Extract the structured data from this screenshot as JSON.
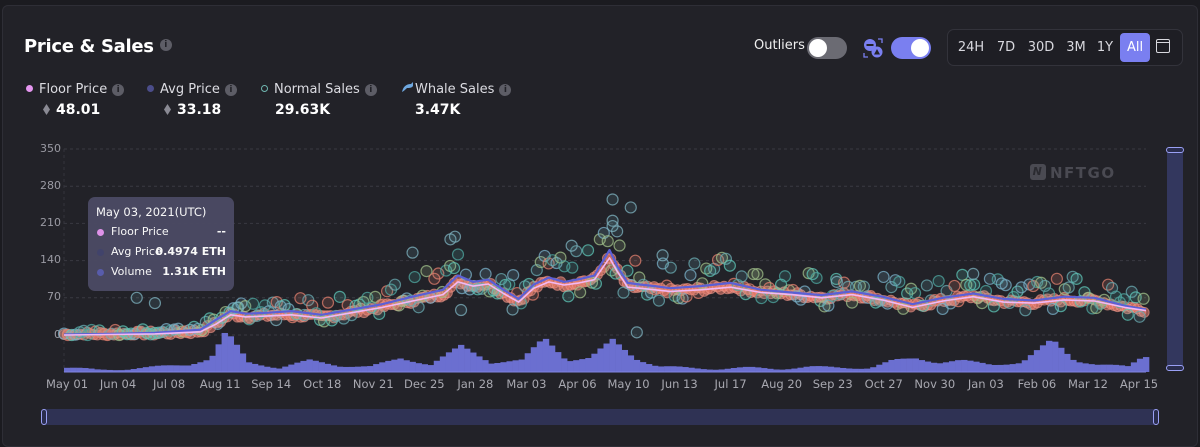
{
  "header": {
    "title": "Price & Sales",
    "outliers_label": "Outliers",
    "outliers_on": false,
    "whale_toggle_on": true,
    "ranges": [
      "24H",
      "7D",
      "30D",
      "3M",
      "1Y",
      "All"
    ],
    "active_range": "All"
  },
  "legend": [
    {
      "label": "Floor Price",
      "value": "48.01",
      "eth": true,
      "color": "#e596f0",
      "marker": "dot"
    },
    {
      "label": "Avg Price",
      "value": "33.18",
      "eth": true,
      "color": "#4b4d8a",
      "marker": "dot"
    },
    {
      "label": "Normal Sales",
      "value": "29.63K",
      "eth": false,
      "color": "#6fb6b0",
      "marker": "ring"
    },
    {
      "label": "Whale Sales",
      "value": "3.47K",
      "eth": false,
      "color": "#6fa8e0",
      "marker": "whale"
    }
  ],
  "tooltip": {
    "date": "May 03, 2021(UTC)",
    "rows": [
      {
        "label": "Floor Price",
        "value": "--",
        "color": "#e596f0"
      },
      {
        "label": "Avg Price",
        "value": "0.4974 ETH",
        "color": "#43456e"
      },
      {
        "label": "Volume",
        "value": "1.31K ETH",
        "color": "#5a5eb0"
      }
    ]
  },
  "watermark": "NFTGO",
  "colors": {
    "accent": "#7a7ff0",
    "floor_line": "#f2b8f5",
    "avg_line": "#5b5fd6",
    "volume": "#6b6fd0",
    "sale_salmon": "#f08070",
    "sale_teal": "#5ec4b6"
  },
  "chart_data": {
    "type": "scatter",
    "title": "Price & Sales",
    "ylabel": "",
    "xlabel": "",
    "ylim": [
      0,
      350
    ],
    "yticks": [
      "350",
      "280",
      "210",
      "140",
      "70",
      "0"
    ],
    "ytick_values": [
      350,
      280,
      210,
      140,
      70,
      0
    ],
    "xticks": [
      "May 01",
      "Jun 04",
      "Jul 08",
      "Aug 11",
      "Sep 14",
      "Oct 18",
      "Nov 21",
      "Dec 25",
      "Jan 28",
      "Mar 03",
      "Apr 06",
      "May 10",
      "Jun 13",
      "Jul 17",
      "Aug 20",
      "Sep 23",
      "Oct 27",
      "Nov 30",
      "Jan 03",
      "Feb 06",
      "Mar 12",
      "Apr 15"
    ],
    "grid": true,
    "x_units": "days since May 01",
    "x_range": [
      0,
      714
    ],
    "series": [
      {
        "name": "Avg Price",
        "type": "line",
        "x": [
          0,
          30,
          60,
          90,
          100,
          110,
          120,
          135,
          150,
          170,
          190,
          210,
          230,
          250,
          260,
          270,
          280,
          290,
          300,
          310,
          320,
          330,
          340,
          350,
          360,
          365,
          372,
          380,
          390,
          400,
          420,
          440,
          460,
          480,
          500,
          520,
          540,
          560,
          580,
          600,
          620,
          640,
          660,
          680,
          700,
          714
        ],
        "values": [
          1,
          2,
          4,
          10,
          28,
          45,
          40,
          42,
          45,
          38,
          48,
          58,
          72,
          85,
          112,
          100,
          104,
          85,
          68,
          95,
          108,
          100,
          105,
          112,
          160,
          130,
          98,
          95,
          92,
          88,
          92,
          98,
          85,
          80,
          75,
          82,
          72,
          58,
          70,
          78,
          68,
          65,
          72,
          70,
          55,
          48
        ]
      },
      {
        "name": "Floor Price",
        "type": "line",
        "x": [
          0,
          30,
          60,
          90,
          100,
          110,
          120,
          135,
          150,
          170,
          190,
          210,
          230,
          250,
          260,
          270,
          280,
          290,
          300,
          310,
          320,
          330,
          340,
          350,
          360,
          365,
          372,
          380,
          390,
          400,
          420,
          440,
          460,
          480,
          500,
          520,
          540,
          560,
          580,
          600,
          620,
          640,
          660,
          680,
          700,
          714
        ],
        "values": [
          0,
          1,
          2,
          6,
          20,
          38,
          34,
          36,
          38,
          32,
          42,
          52,
          64,
          76,
          100,
          92,
          96,
          78,
          62,
          88,
          100,
          94,
          98,
          104,
          145,
          120,
          90,
          88,
          85,
          82,
          85,
          90,
          80,
          76,
          70,
          76,
          66,
          52,
          64,
          72,
          62,
          60,
          66,
          64,
          52,
          46
        ]
      },
      {
        "name": "Volume",
        "type": "bar",
        "x": [
          0,
          20,
          40,
          60,
          80,
          95,
          105,
          120,
          140,
          160,
          180,
          200,
          220,
          240,
          260,
          280,
          300,
          315,
          330,
          345,
          360,
          375,
          390,
          410,
          430,
          450,
          470,
          490,
          510,
          530,
          545,
          560,
          575,
          590,
          610,
          630,
          650,
          665,
          680,
          700,
          710
        ],
        "values": [
          3,
          1,
          2,
          4,
          6,
          12,
          38,
          8,
          3,
          10,
          5,
          4,
          12,
          6,
          24,
          8,
          10,
          32,
          10,
          12,
          30,
          12,
          4,
          3,
          2,
          3,
          2,
          4,
          3,
          3,
          10,
          12,
          8,
          10,
          6,
          8,
          30,
          10,
          6,
          4,
          14
        ]
      }
    ]
  }
}
